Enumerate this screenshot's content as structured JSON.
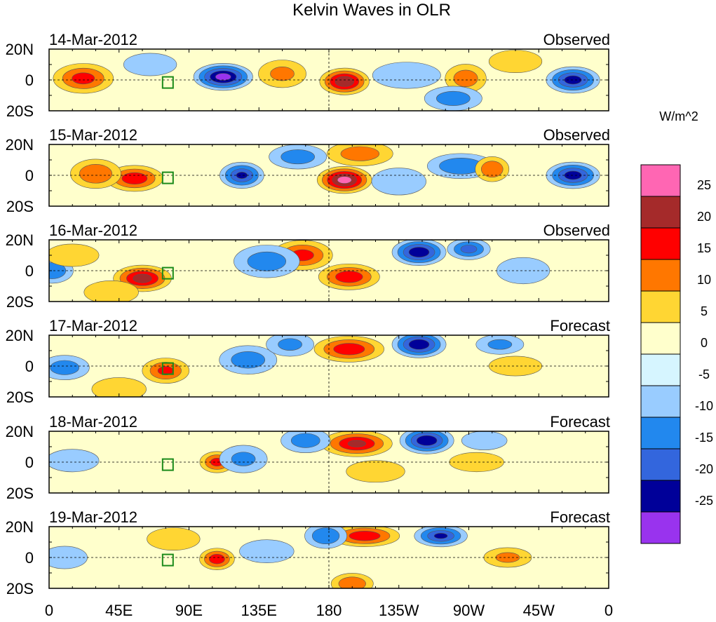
{
  "chart_data": {
    "type": "heatmap",
    "title": "Kelvin Waves in OLR",
    "colorbar": {
      "unit": "W/m^2",
      "tick_labels": [
        "25",
        "20",
        "15",
        "10",
        "5",
        "0",
        "-5",
        "-10",
        "-15",
        "-20",
        "-25"
      ],
      "colors": [
        "#ff66b3",
        "#a52a2a",
        "#ff0000",
        "#ff7700",
        "#ffd633",
        "#ffffcc",
        "#d6f5ff",
        "#99ccff",
        "#2288ee",
        "#3366dd",
        "#000099",
        "#9933ee"
      ]
    },
    "lat_labels": [
      "20N",
      "0",
      "20S"
    ],
    "lon_labels": [
      "0",
      "45E",
      "90E",
      "135E",
      "180",
      "135W",
      "90W",
      "45W",
      "0"
    ],
    "panels": [
      {
        "date": "14-Mar-2012",
        "status": "Observed",
        "anomalies": [
          {
            "lon": 112,
            "lat": 2,
            "value": -27,
            "sx": 13,
            "sy": 6
          },
          {
            "lon": 190,
            "lat": -1,
            "value": 24,
            "sx": 11,
            "sy": 6
          },
          {
            "lon": 22,
            "lat": 1,
            "value": 16,
            "sx": 14,
            "sy": 7
          },
          {
            "lon": 337,
            "lat": 0,
            "value": -22,
            "sx": 12,
            "sy": 6
          },
          {
            "lon": 268,
            "lat": 1,
            "value": 12,
            "sx": 10,
            "sy": 7
          },
          {
            "lon": 150,
            "lat": 4,
            "value": 10,
            "sx": 12,
            "sy": 7
          },
          {
            "lon": 260,
            "lat": -12,
            "value": -12,
            "sx": 14,
            "sy": 6
          },
          {
            "lon": 65,
            "lat": 10,
            "value": -8,
            "sx": 14,
            "sy": 6
          },
          {
            "lon": 230,
            "lat": 3,
            "value": -8,
            "sx": 18,
            "sy": 7
          },
          {
            "lon": 300,
            "lat": 12,
            "value": 8,
            "sx": 14,
            "sy": 6
          }
        ]
      },
      {
        "date": "15-Mar-2012",
        "status": "Observed",
        "anomalies": [
          {
            "lon": 190,
            "lat": -3,
            "value": 27,
            "sx": 12,
            "sy": 6
          },
          {
            "lon": 55,
            "lat": -2,
            "value": 18,
            "sx": 13,
            "sy": 6
          },
          {
            "lon": 30,
            "lat": 1,
            "value": 14,
            "sx": 12,
            "sy": 7
          },
          {
            "lon": 124,
            "lat": 0,
            "value": -20,
            "sx": 10,
            "sy": 6
          },
          {
            "lon": 337,
            "lat": 0,
            "value": -22,
            "sx": 12,
            "sy": 6
          },
          {
            "lon": 265,
            "lat": 6,
            "value": -14,
            "sx": 16,
            "sy": 6
          },
          {
            "lon": 200,
            "lat": 14,
            "value": 12,
            "sx": 16,
            "sy": 6
          },
          {
            "lon": 285,
            "lat": 4,
            "value": 14,
            "sx": 8,
            "sy": 6
          },
          {
            "lon": 160,
            "lat": 12,
            "value": -12,
            "sx": 14,
            "sy": 6
          },
          {
            "lon": 225,
            "lat": -4,
            "value": -9,
            "sx": 14,
            "sy": 7
          }
        ]
      },
      {
        "date": "16-Mar-2012",
        "status": "Observed",
        "anomalies": [
          {
            "lon": 60,
            "lat": -5,
            "value": 22,
            "sx": 13,
            "sy": 6
          },
          {
            "lon": 193,
            "lat": -4,
            "value": 18,
            "sx": 14,
            "sy": 6
          },
          {
            "lon": 163,
            "lat": 10,
            "value": 16,
            "sx": 14,
            "sy": 7
          },
          {
            "lon": 238,
            "lat": 12,
            "value": -24,
            "sx": 12,
            "sy": 6
          },
          {
            "lon": 140,
            "lat": 6,
            "value": -12,
            "sx": 16,
            "sy": 8
          },
          {
            "lon": 270,
            "lat": 14,
            "value": -16,
            "sx": 10,
            "sy": 5
          },
          {
            "lon": 2,
            "lat": 0,
            "value": -14,
            "sx": 10,
            "sy": 6
          },
          {
            "lon": 15,
            "lat": 10,
            "value": 8,
            "sx": 14,
            "sy": 6
          },
          {
            "lon": 305,
            "lat": 0,
            "value": -8,
            "sx": 14,
            "sy": 7
          },
          {
            "lon": 40,
            "lat": -14,
            "value": 9,
            "sx": 14,
            "sy": 6
          }
        ]
      },
      {
        "date": "17-Mar-2012",
        "status": "Forecast",
        "anomalies": [
          {
            "lon": 193,
            "lat": 11,
            "value": 18,
            "sx": 16,
            "sy": 6
          },
          {
            "lon": 238,
            "lat": 14,
            "value": -24,
            "sx": 12,
            "sy": 6
          },
          {
            "lon": 75,
            "lat": -3,
            "value": 15,
            "sx": 11,
            "sy": 6
          },
          {
            "lon": 10,
            "lat": -1,
            "value": -12,
            "sx": 12,
            "sy": 6
          },
          {
            "lon": 128,
            "lat": 4,
            "value": -12,
            "sx": 14,
            "sy": 7
          },
          {
            "lon": 155,
            "lat": 14,
            "value": -10,
            "sx": 12,
            "sy": 6
          },
          {
            "lon": 290,
            "lat": 14,
            "value": -10,
            "sx": 12,
            "sy": 5
          },
          {
            "lon": 300,
            "lat": 0,
            "value": 5,
            "sx": 16,
            "sy": 6
          },
          {
            "lon": 45,
            "lat": -15,
            "value": 9,
            "sx": 14,
            "sy": 6
          }
        ]
      },
      {
        "date": "18-Mar-2012",
        "status": "Forecast",
        "anomalies": [
          {
            "lon": 198,
            "lat": 12,
            "value": 20,
            "sx": 16,
            "sy": 6
          },
          {
            "lon": 243,
            "lat": 14,
            "value": -24,
            "sx": 12,
            "sy": 6
          },
          {
            "lon": 108,
            "lat": 0,
            "value": 16,
            "sx": 8,
            "sy": 5
          },
          {
            "lon": 165,
            "lat": 14,
            "value": -12,
            "sx": 12,
            "sy": 6
          },
          {
            "lon": 125,
            "lat": 2,
            "value": -10,
            "sx": 12,
            "sy": 7
          },
          {
            "lon": 275,
            "lat": 0,
            "value": 9,
            "sx": 14,
            "sy": 5
          },
          {
            "lon": 15,
            "lat": 1,
            "value": -8,
            "sx": 14,
            "sy": 6
          },
          {
            "lon": 210,
            "lat": -6,
            "value": 7,
            "sx": 16,
            "sy": 6
          },
          {
            "lon": 280,
            "lat": 14,
            "value": -8,
            "sx": 12,
            "sy": 5
          }
        ]
      },
      {
        "date": "19-Mar-2012",
        "status": "Forecast",
        "anomalies": [
          {
            "lon": 203,
            "lat": 14,
            "value": 18,
            "sx": 16,
            "sy": 5
          },
          {
            "lon": 252,
            "lat": 14,
            "value": -20,
            "sx": 12,
            "sy": 5
          },
          {
            "lon": 108,
            "lat": -1,
            "value": 18,
            "sx": 8,
            "sy": 5
          },
          {
            "lon": 178,
            "lat": 14,
            "value": -14,
            "sx": 10,
            "sy": 6
          },
          {
            "lon": 295,
            "lat": 0,
            "value": 10,
            "sx": 12,
            "sy": 5
          },
          {
            "lon": 80,
            "lat": 12,
            "value": 8,
            "sx": 14,
            "sy": 6
          },
          {
            "lon": 195,
            "lat": -17,
            "value": 14,
            "sx": 10,
            "sy": 5
          },
          {
            "lon": 10,
            "lat": 0,
            "value": -8,
            "sx": 12,
            "sy": 6
          },
          {
            "lon": 140,
            "lat": 4,
            "value": -9,
            "sx": 14,
            "sy": 6
          }
        ]
      }
    ]
  }
}
